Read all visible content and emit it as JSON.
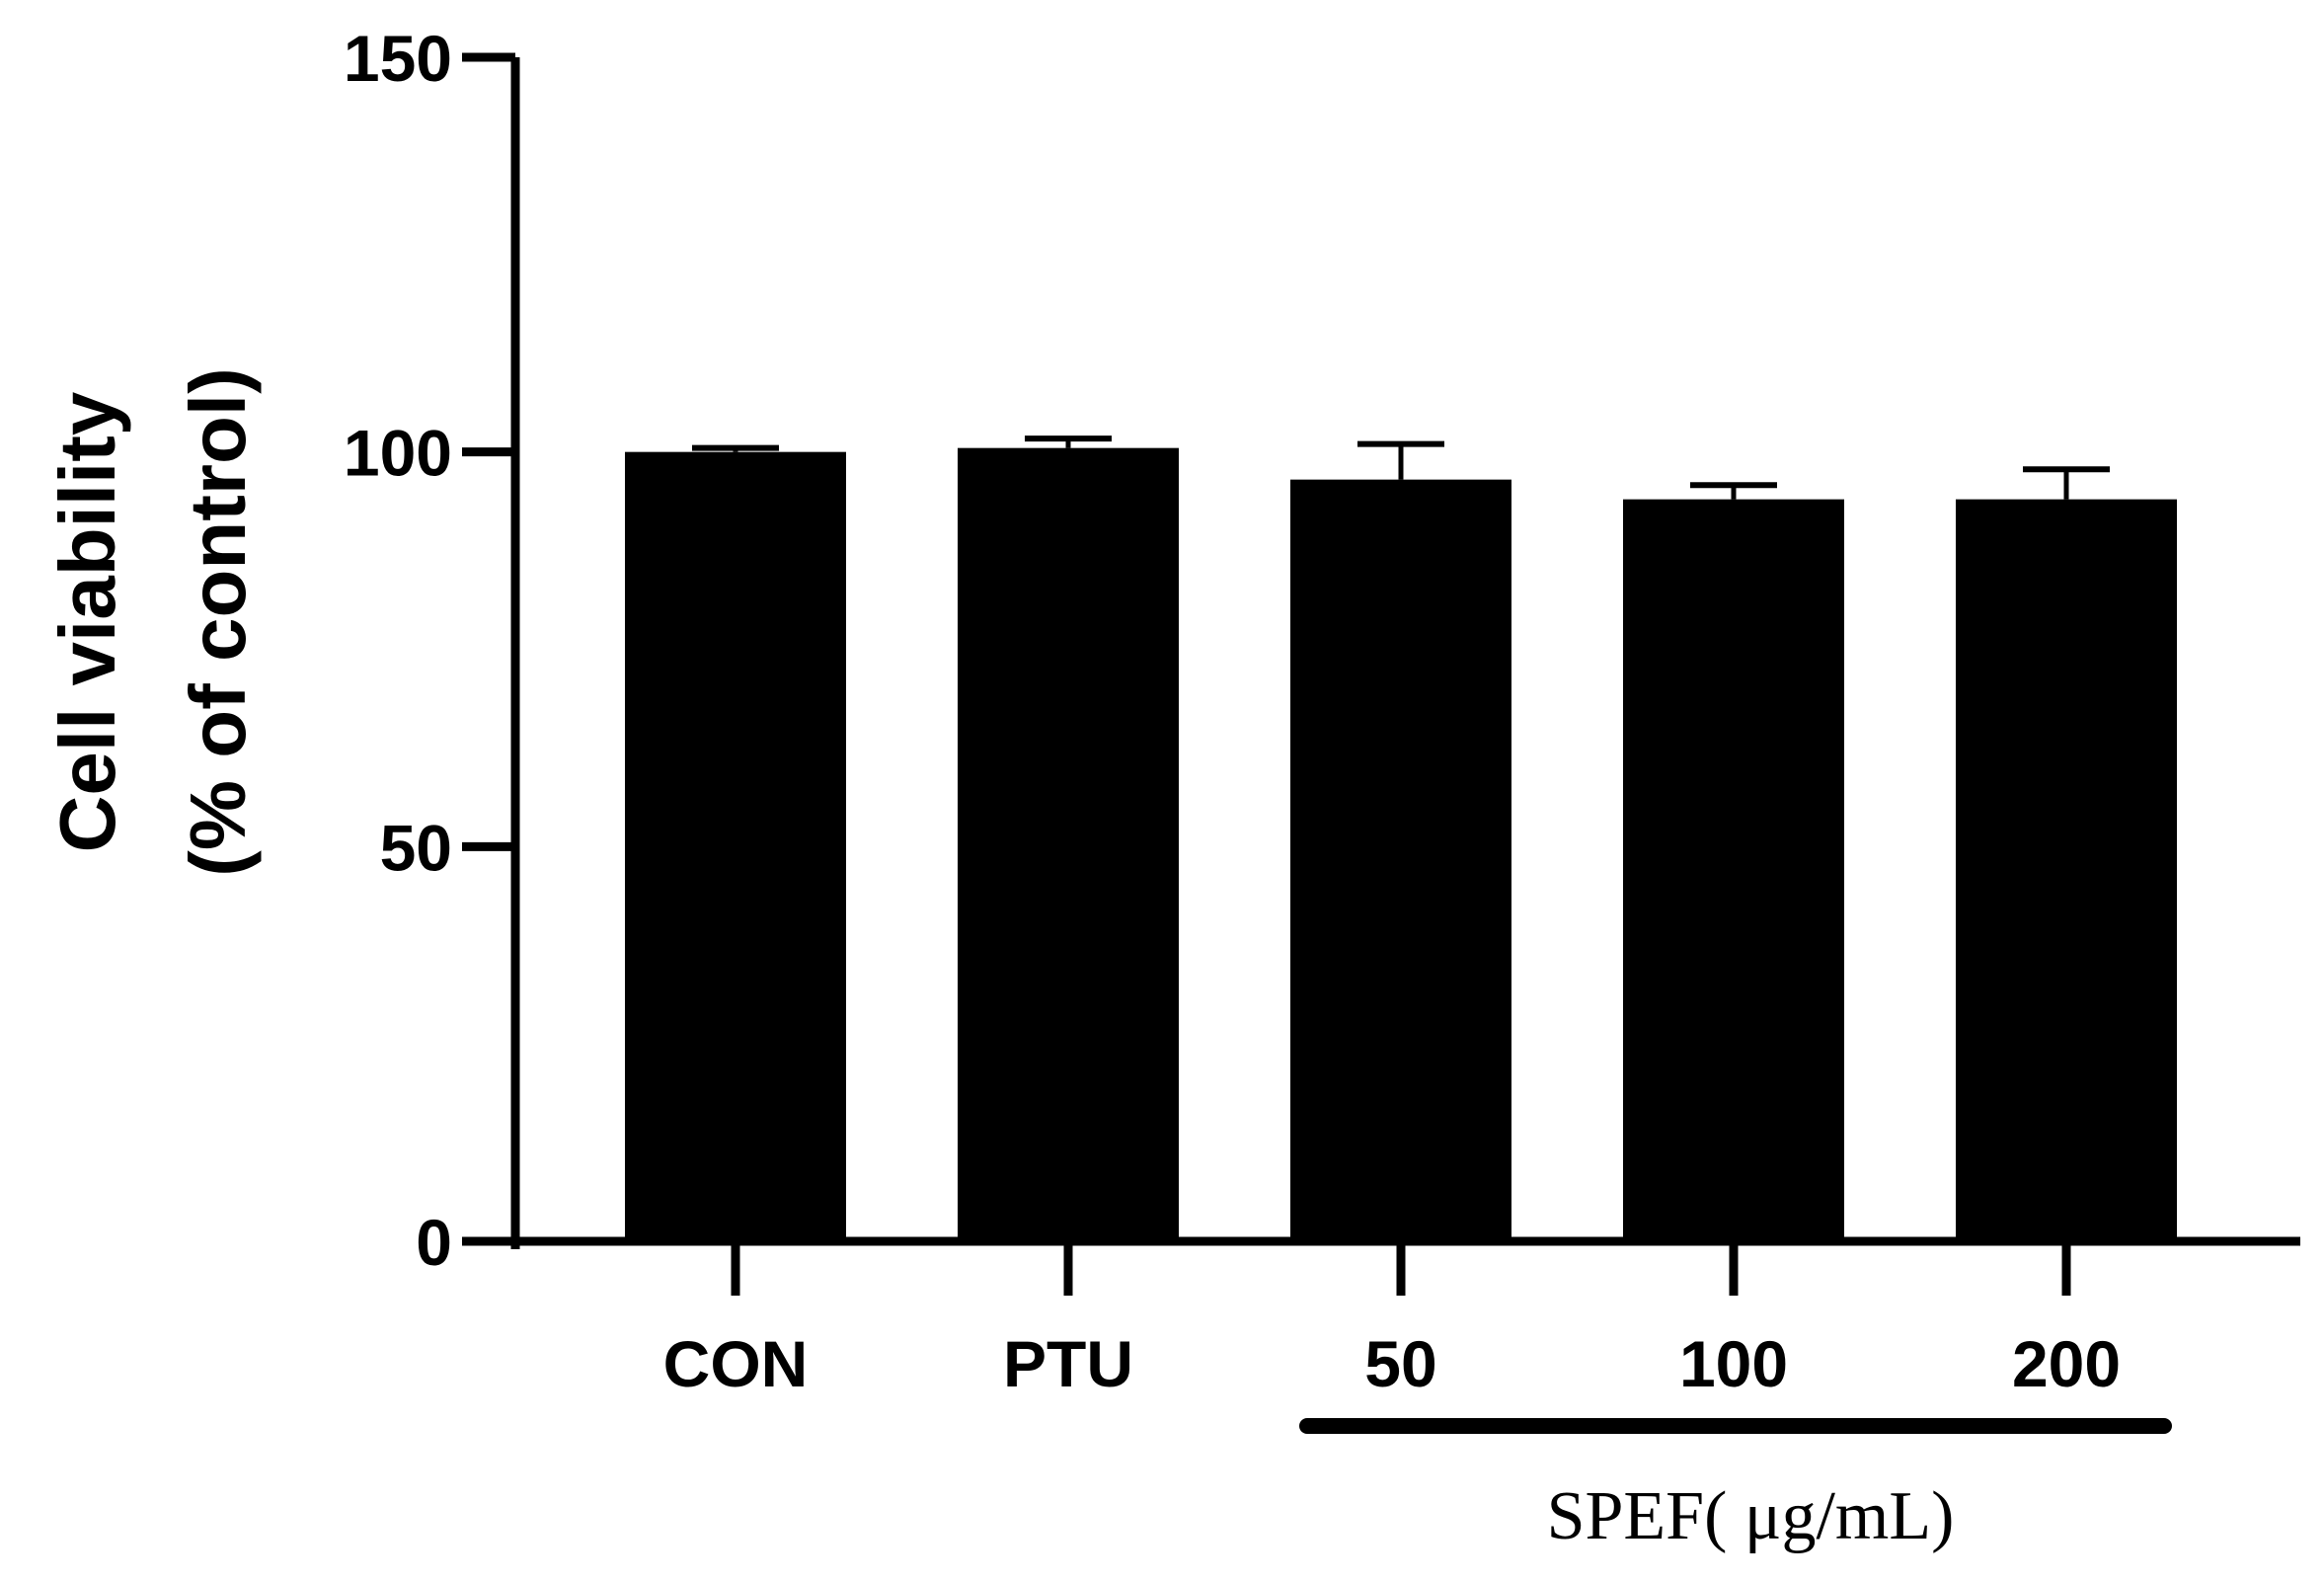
{
  "chart_data": {
    "type": "bar",
    "categories": [
      "CON",
      "PTU",
      "50",
      "100",
      "200"
    ],
    "values": [
      100,
      100.5,
      96.5,
      94,
      94
    ],
    "errors": [
      0.5,
      1.2,
      4.5,
      1.8,
      3.8
    ],
    "ylabel_line1": "Cell viability",
    "ylabel_line2": "(% of control)",
    "xlabel": "",
    "group_label": "SPEF( μg/mL)",
    "group_categories": [
      "50",
      "100",
      "200"
    ],
    "ylim": [
      0,
      150
    ],
    "yticks": [
      0,
      50,
      100,
      150
    ],
    "bar_color": "#000000",
    "grid": false
  }
}
